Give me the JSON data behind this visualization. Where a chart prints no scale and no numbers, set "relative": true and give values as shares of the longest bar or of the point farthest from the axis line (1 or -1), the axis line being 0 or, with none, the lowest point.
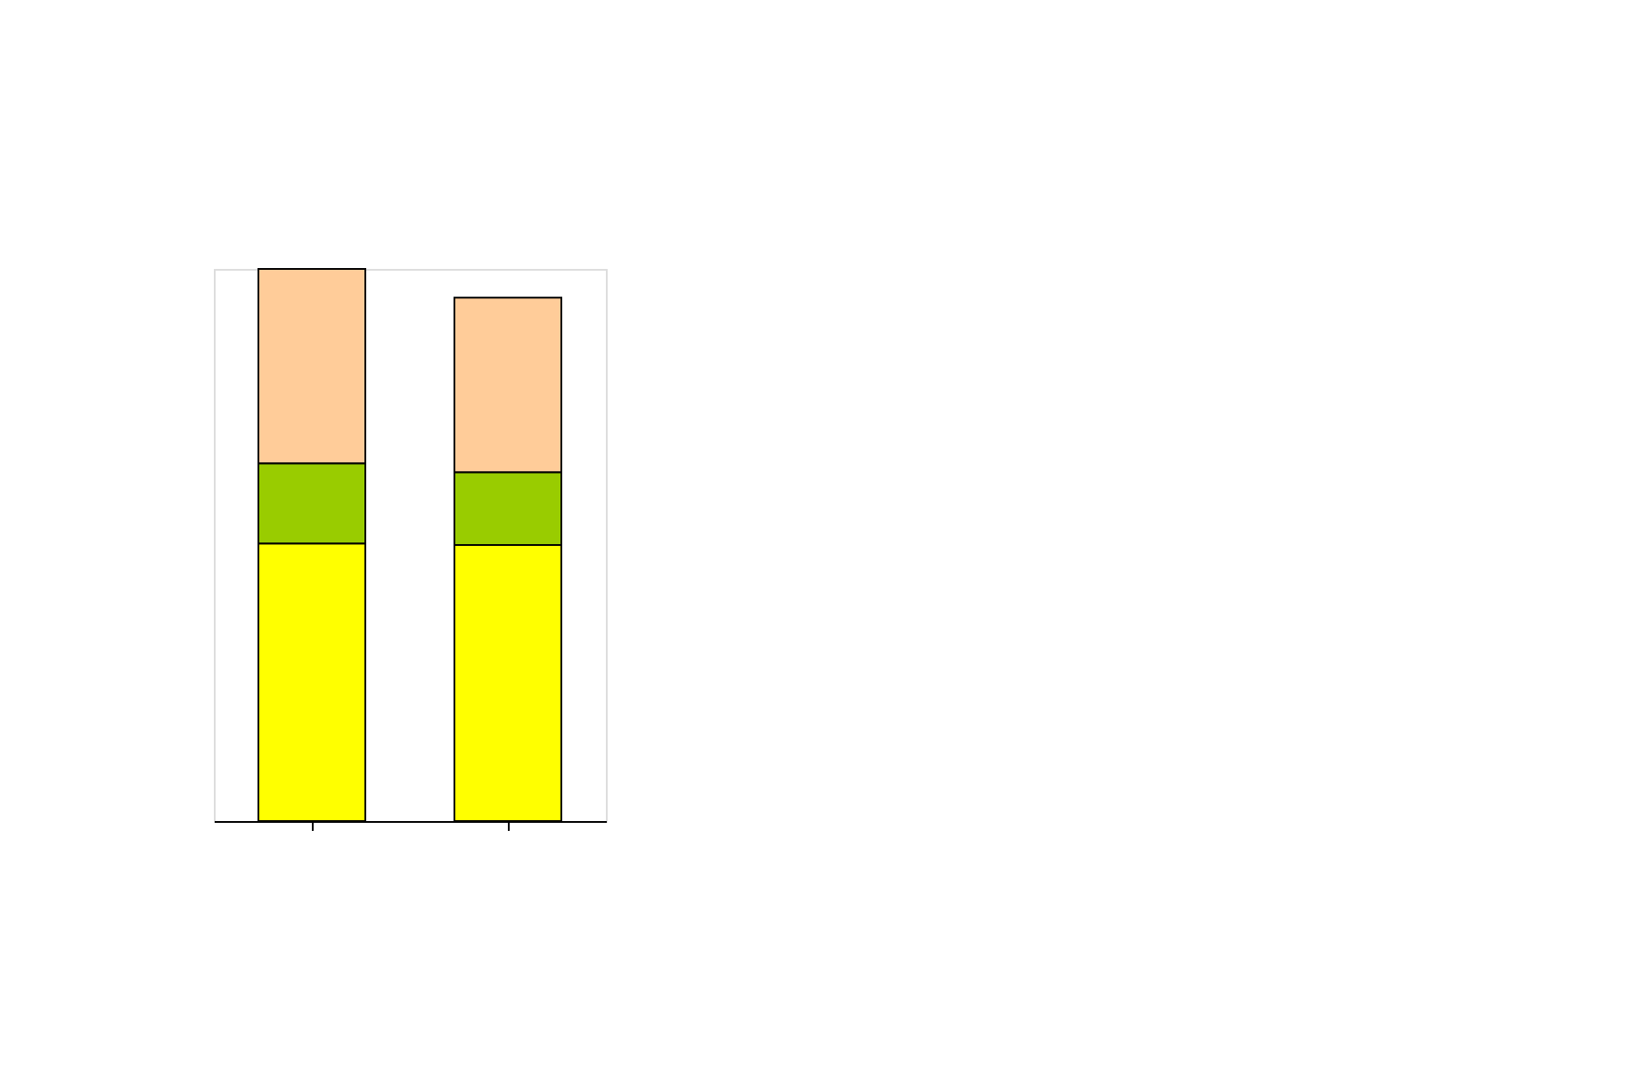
{
  "chart_data": {
    "type": "bar",
    "stacked": true,
    "relative": true,
    "categories": [
      null,
      null
    ],
    "series": [
      {
        "color": "#ffff00",
        "values": [
          0.503,
          0.5
        ]
      },
      {
        "color": "#99cc00",
        "values": [
          0.145,
          0.132
        ]
      },
      {
        "color": "#ffcc99",
        "values": [
          0.352,
          0.316
        ]
      }
    ]
  }
}
